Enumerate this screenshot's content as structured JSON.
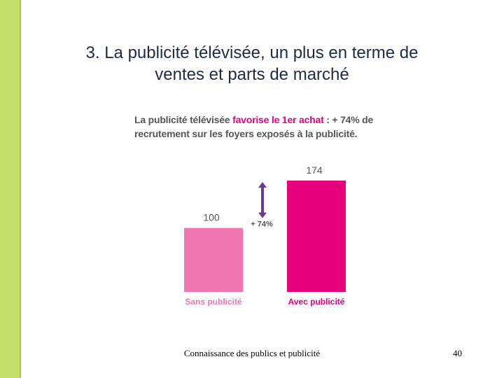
{
  "slide": {
    "title_line1": "3. La publicité télévisée, un plus en terme de",
    "title_line2": "ventes et parts de marché",
    "footer": "Connaissance des publics et publicité",
    "page_number": "40",
    "sidebar_color": "#c5e06a"
  },
  "chart_data": {
    "type": "bar",
    "subtitle_part1": "La publicité télévisée ",
    "subtitle_highlight": "favorise le 1er achat",
    "subtitle_part2": " : + 74% de recrutement sur les foyers exposés à la publicité.",
    "categories": [
      "Sans publicité",
      "Avec publicité"
    ],
    "values": [
      100,
      174
    ],
    "value_labels": [
      "100",
      "174"
    ],
    "colors": [
      "#f075b0",
      "#e6007e"
    ],
    "annotation": "+ 74%",
    "annotation_color": "#6b3a8e",
    "ylim": [
      0,
      174
    ]
  }
}
